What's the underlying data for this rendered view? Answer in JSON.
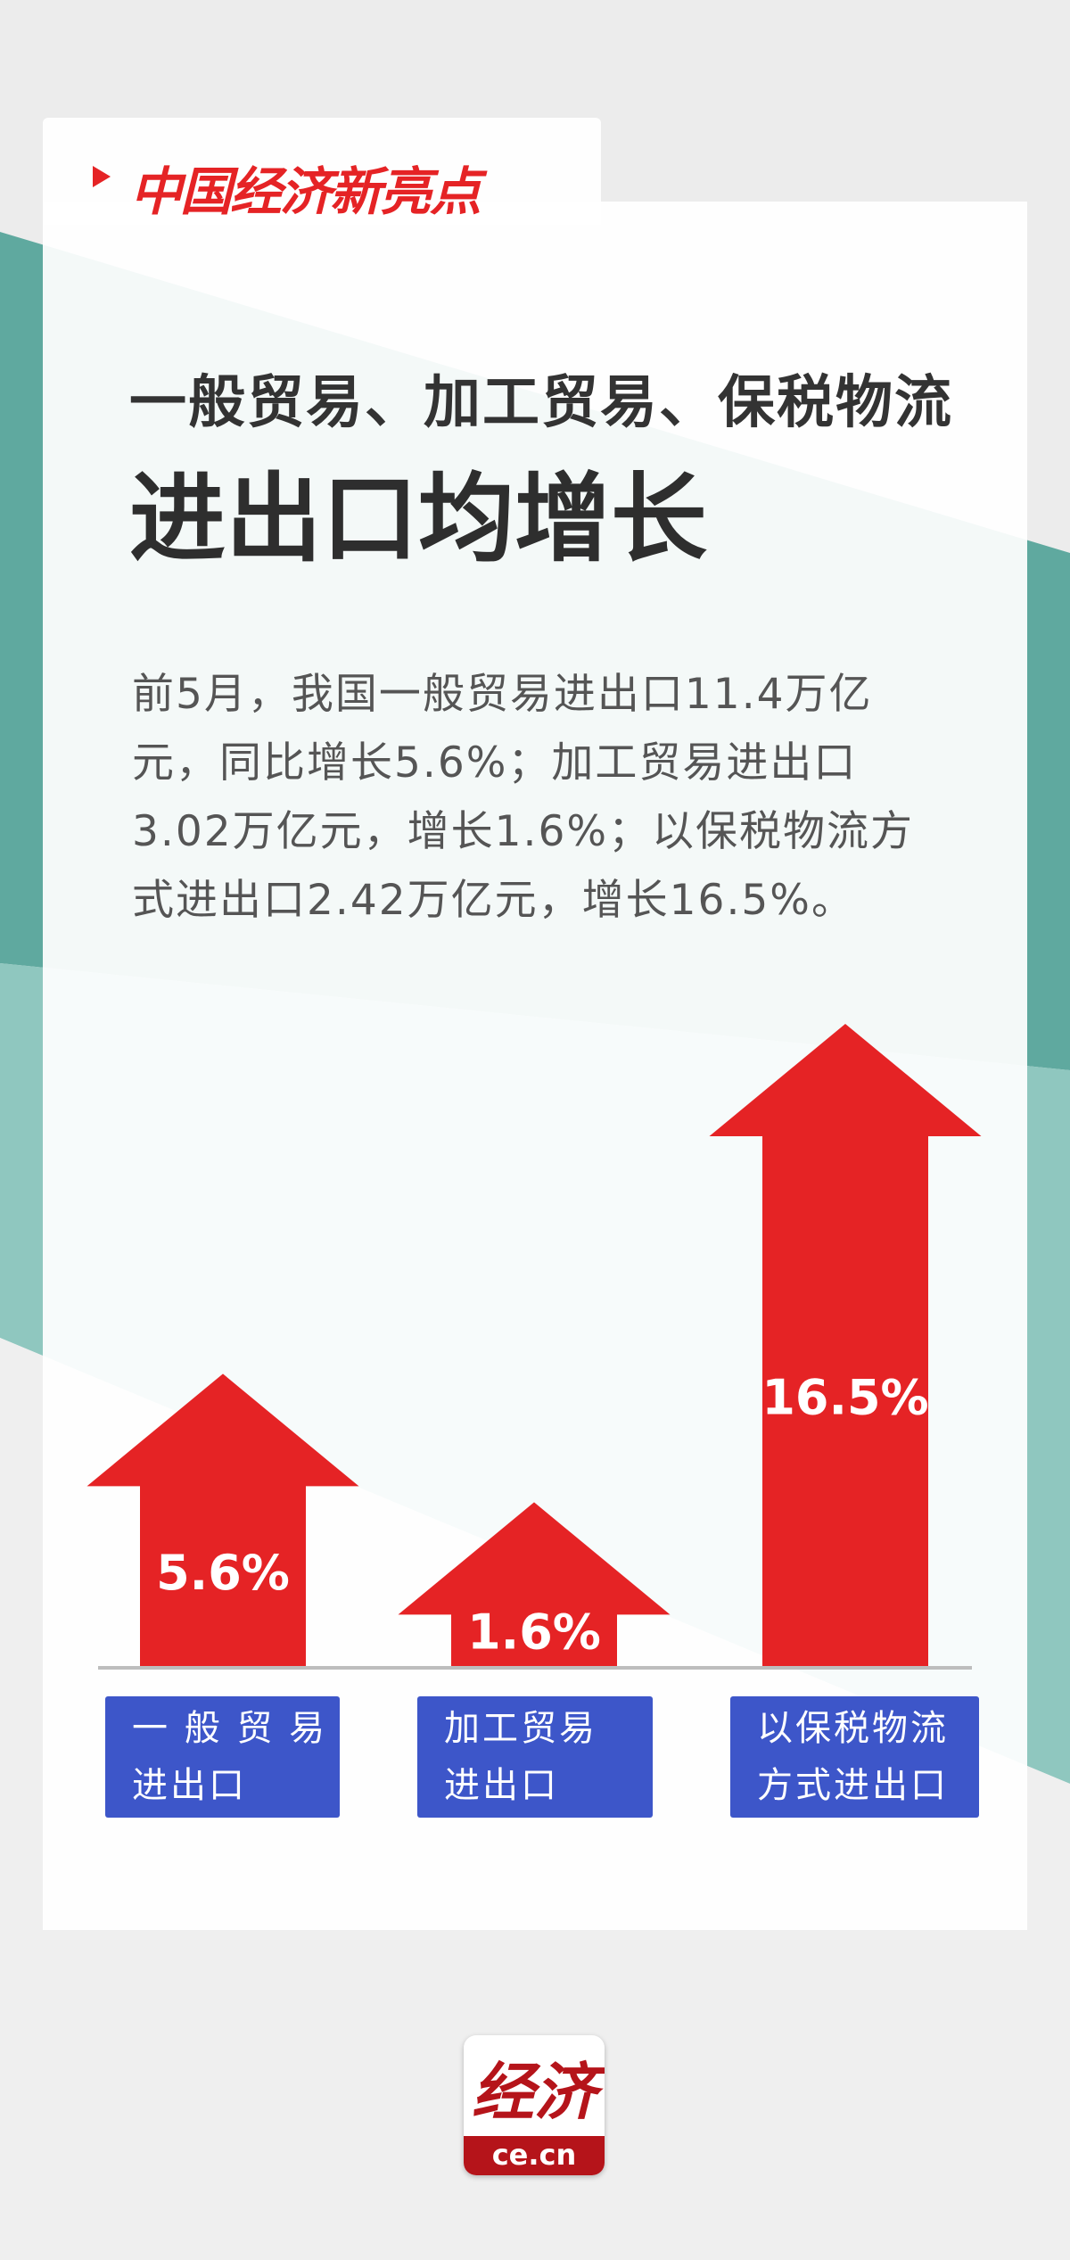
{
  "brand": "中国经济新亮点",
  "title_lines": [
    "一般贸易、加工贸易、保税物流",
    "进出口均增长"
  ],
  "description": "前5月，我国一般贸易进出口11.4万亿元，同比增长5.6%；加工贸易进出口3.02万亿元，增长1.6%；以保税物流方式进出口2.42万亿元，增长16.5%。",
  "chart_data": {
    "type": "bar",
    "categories": [
      "一 般 贸 易\n进出口",
      "加工贸易\n进出口",
      "以保税物流\n方式进出口"
    ],
    "values": [
      5.6,
      1.6,
      16.5
    ],
    "value_labels": [
      "5.6%",
      "1.6%",
      "16.5%"
    ],
    "color": "#e52325"
  },
  "logo": {
    "text": "经济",
    "domain": "ce.cn"
  }
}
